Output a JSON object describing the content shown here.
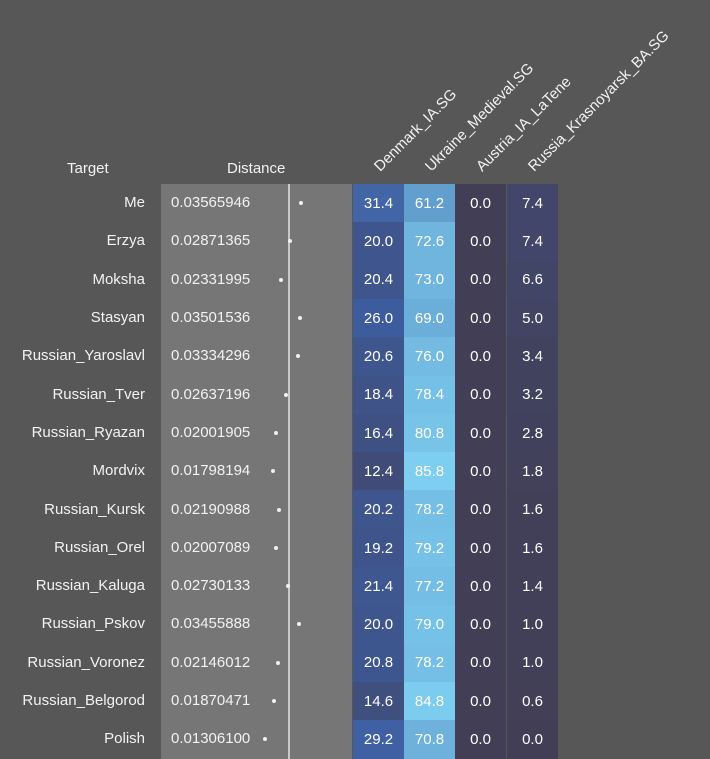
{
  "chart_data": {
    "type": "heatmap",
    "headers": {
      "target": "Target",
      "distance": "Distance"
    },
    "columns": [
      "Denmark_IA.SG",
      "Ukraine_Medieval.SG",
      "Austria_IA_LaTene",
      "Russia_Krasnoyarsk_BA.SG"
    ],
    "distance_axis_max": 0.06,
    "rows": [
      {
        "target": "Me",
        "distance": "0.03565946",
        "values": [
          "31.4",
          "61.2",
          "0.0",
          "7.4"
        ]
      },
      {
        "target": "Erzya",
        "distance": "0.02871365",
        "values": [
          "20.0",
          "72.6",
          "0.0",
          "7.4"
        ]
      },
      {
        "target": "Moksha",
        "distance": "0.02331995",
        "values": [
          "20.4",
          "73.0",
          "0.0",
          "6.6"
        ]
      },
      {
        "target": "Stasyan",
        "distance": "0.03501536",
        "values": [
          "26.0",
          "69.0",
          "0.0",
          "5.0"
        ]
      },
      {
        "target": "Russian_Yaroslavl",
        "distance": "0.03334296",
        "values": [
          "20.6",
          "76.0",
          "0.0",
          "3.4"
        ]
      },
      {
        "target": "Russian_Tver",
        "distance": "0.02637196",
        "values": [
          "18.4",
          "78.4",
          "0.0",
          "3.2"
        ]
      },
      {
        "target": "Russian_Ryazan",
        "distance": "0.02001905",
        "values": [
          "16.4",
          "80.8",
          "0.0",
          "2.8"
        ]
      },
      {
        "target": "Mordvix",
        "distance": "0.01798194",
        "values": [
          "12.4",
          "85.8",
          "0.0",
          "1.8"
        ]
      },
      {
        "target": "Russian_Kursk",
        "distance": "0.02190988",
        "values": [
          "20.2",
          "78.2",
          "0.0",
          "1.6"
        ]
      },
      {
        "target": "Russian_Orel",
        "distance": "0.02007089",
        "values": [
          "19.2",
          "79.2",
          "0.0",
          "1.6"
        ]
      },
      {
        "target": "Russian_Kaluga",
        "distance": "0.02730133",
        "values": [
          "21.4",
          "77.2",
          "0.0",
          "1.4"
        ]
      },
      {
        "target": "Russian_Pskov",
        "distance": "0.03455888",
        "values": [
          "20.0",
          "79.0",
          "0.0",
          "1.0"
        ]
      },
      {
        "target": "Russian_Voronez",
        "distance": "0.02146012",
        "values": [
          "20.8",
          "78.2",
          "0.0",
          "1.0"
        ]
      },
      {
        "target": "Russian_Belgorod",
        "distance": "0.01870471",
        "values": [
          "14.6",
          "84.8",
          "0.0",
          "0.6"
        ]
      },
      {
        "target": "Polish",
        "distance": "0.01306100",
        "values": [
          "29.2",
          "70.8",
          "0.0",
          "0.0"
        ]
      }
    ]
  }
}
